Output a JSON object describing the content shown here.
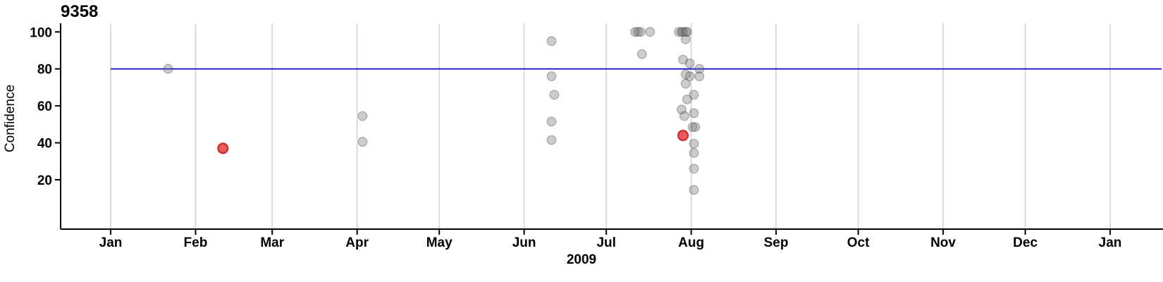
{
  "chart_data": {
    "type": "scatter",
    "title": "9358",
    "xlabel": "2009",
    "ylabel": "Confidence",
    "x_axis": {
      "tick_labels": [
        "Jan",
        "Feb",
        "Mar",
        "Apr",
        "May",
        "Jun",
        "Jul",
        "Aug",
        "Sep",
        "Oct",
        "Nov",
        "Dec",
        "Jan"
      ],
      "tick_day_of_year": [
        0,
        31,
        59,
        90,
        120,
        151,
        181,
        212,
        243,
        273,
        304,
        334,
        365
      ],
      "year_shown": "2009"
    },
    "y_axis": {
      "ticks": [
        20,
        40,
        60,
        80,
        100
      ],
      "label": "Confidence"
    },
    "grid": {
      "vertical_gridlines": true,
      "color": "#d9d9d9"
    },
    "threshold_line": {
      "value": 80,
      "color": "#2323cd",
      "start_day": 0,
      "end_day": 384
    },
    "series": [
      {
        "name": "observations",
        "marker": "circle",
        "fill": "#6e6e6e",
        "fill_opacity": 0.35,
        "stroke": "#4a4a4a",
        "stroke_opacity": 0.42,
        "radius": 6.3,
        "points_day_value": [
          [
            21,
            80
          ],
          [
            92,
            54.5
          ],
          [
            92,
            40.5
          ],
          [
            161,
            95
          ],
          [
            161,
            76
          ],
          [
            162,
            66
          ],
          [
            161,
            51.5
          ],
          [
            161,
            41.5
          ],
          [
            191.5,
            100
          ],
          [
            192.5,
            100
          ],
          [
            193.5,
            100
          ],
          [
            197,
            100
          ],
          [
            194,
            88
          ],
          [
            207.5,
            100
          ],
          [
            208.5,
            100
          ],
          [
            209,
            100
          ],
          [
            210,
            100
          ],
          [
            210.5,
            100
          ],
          [
            210,
            96
          ],
          [
            209,
            85
          ],
          [
            211.5,
            83
          ],
          [
            215,
            80
          ],
          [
            210,
            77
          ],
          [
            211.5,
            76
          ],
          [
            215,
            76
          ],
          [
            210,
            72
          ],
          [
            213,
            66
          ],
          [
            210.5,
            63.5
          ],
          [
            208.5,
            58
          ],
          [
            209.5,
            54.5
          ],
          [
            213,
            56
          ],
          [
            212.5,
            48.5
          ],
          [
            213.5,
            48.5
          ],
          [
            213,
            39.5
          ],
          [
            213,
            34.5
          ],
          [
            213,
            26
          ],
          [
            213,
            14.5
          ]
        ]
      },
      {
        "name": "highlighted-observations",
        "marker": "circle",
        "fill": "#e84444",
        "fill_opacity": 0.88,
        "stroke": "#c92b2b",
        "stroke_opacity": 0.95,
        "radius": 6.9,
        "points_day_value": [
          [
            41,
            37
          ],
          [
            209,
            44
          ]
        ]
      }
    ]
  }
}
